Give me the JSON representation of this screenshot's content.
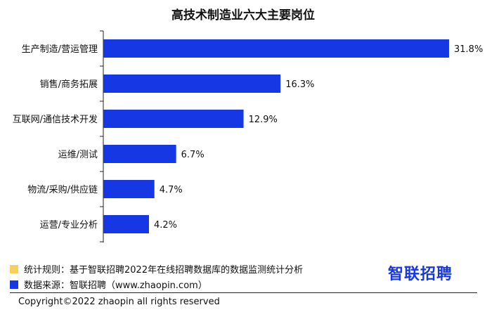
{
  "chart_data": {
    "type": "bar",
    "orientation": "horizontal",
    "title": "高技术制造业六大主要岗位",
    "categories": [
      "生产制造/营运管理",
      "销售/商务拓展",
      "互联网/通信技术开发",
      "运维/测试",
      "物流/采购/供应链",
      "运营/专业分析"
    ],
    "values": [
      31.8,
      16.3,
      12.9,
      6.7,
      4.7,
      4.2
    ],
    "value_labels": [
      "31.8%",
      "16.3%",
      "12.9%",
      "6.7%",
      "4.7%",
      "4.2%"
    ],
    "unit": "%",
    "xlim": [
      0,
      31.8
    ],
    "bar_color": "#1637e4",
    "grid": false
  },
  "notes": {
    "rule_text": "统计规则：基于智联招聘2022年在线招聘数据库的数据监测统计分析",
    "rule_color": "#f8cf5d",
    "source_text": "数据来源：智联招聘（www.zhaopin.com）",
    "source_color": "#1637e4"
  },
  "logo_text": "智联招聘",
  "copyright": "Copyright©2022 zhaopin all rights reserved"
}
